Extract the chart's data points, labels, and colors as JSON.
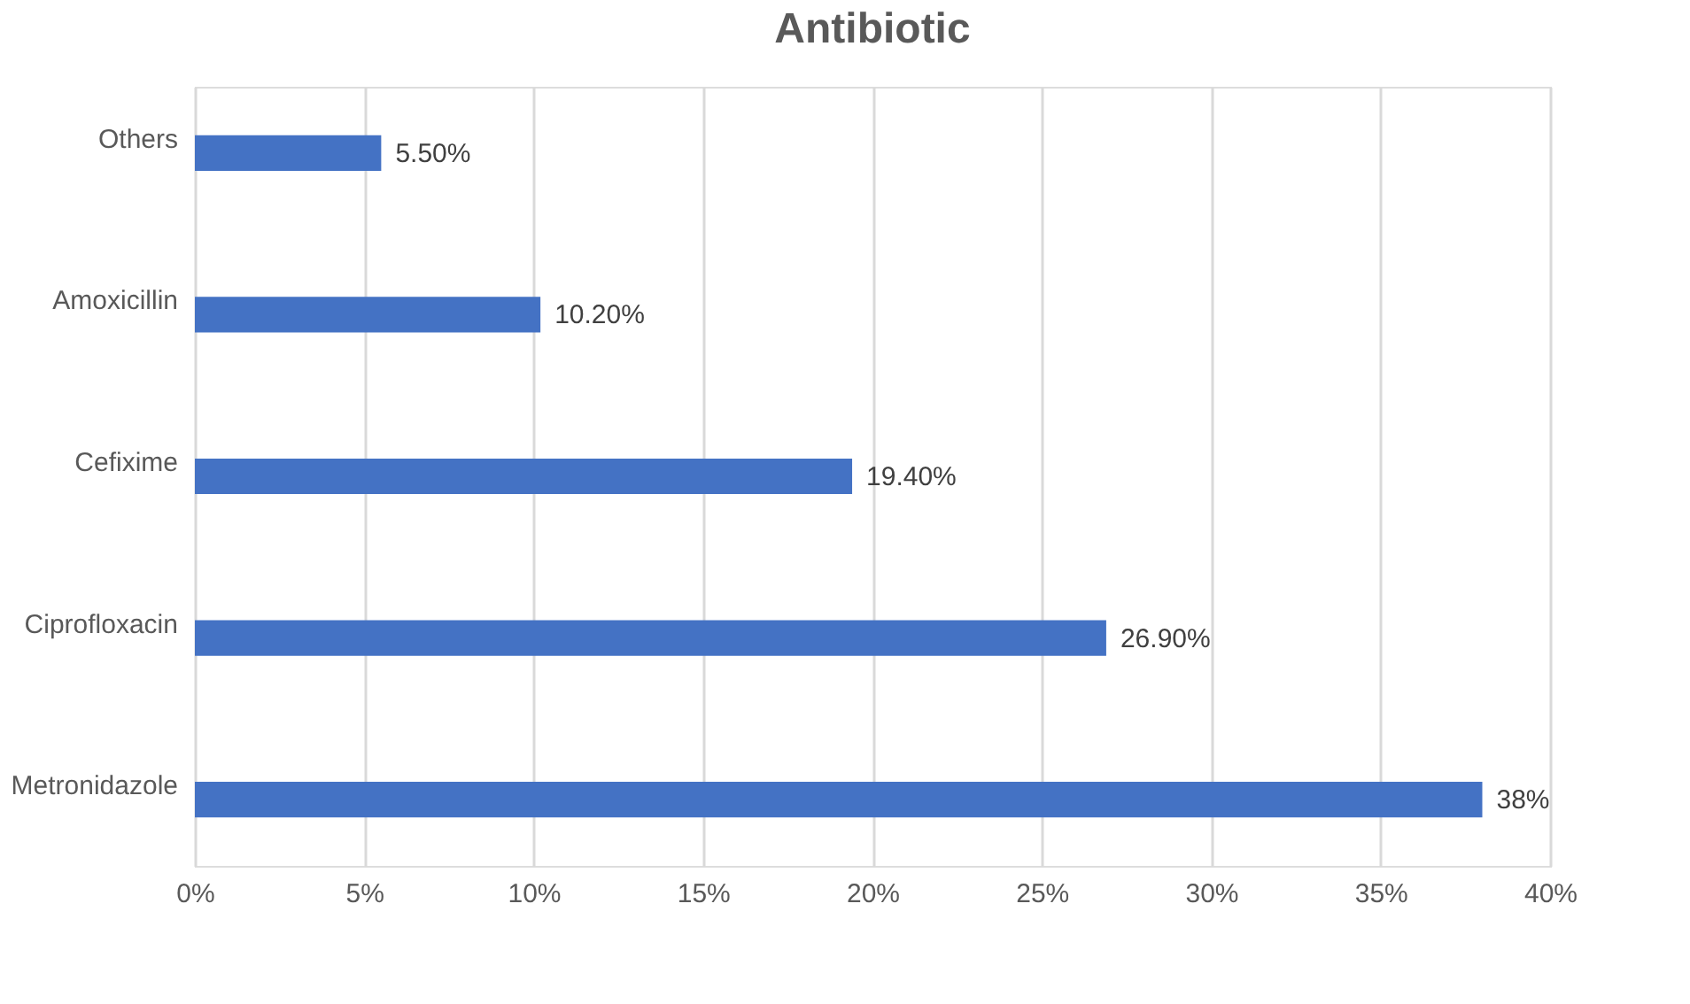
{
  "chart_data": {
    "type": "bar",
    "title": "Antibiotic",
    "orientation": "horizontal",
    "categories": [
      "Others",
      "Amoxicillin",
      "Cefixime",
      "Ciprofloxacin",
      "Metronidazole"
    ],
    "values": [
      5.5,
      10.2,
      19.4,
      26.9,
      38
    ],
    "value_labels": [
      "5.50%",
      "10.20%",
      "19.40%",
      "26.90%",
      "38%"
    ],
    "color": "#4472c4",
    "xlim": [
      0,
      40
    ],
    "xticks": [
      {
        "value": 0,
        "label": "0%"
      },
      {
        "value": 5,
        "label": "5%"
      },
      {
        "value": 10,
        "label": "10%"
      },
      {
        "value": 15,
        "label": "15%"
      },
      {
        "value": 20,
        "label": "20%"
      },
      {
        "value": 25,
        "label": "25%"
      },
      {
        "value": 30,
        "label": "30%"
      },
      {
        "value": 35,
        "label": "35%"
      },
      {
        "value": 40,
        "label": "40%"
      }
    ],
    "grid": "x"
  }
}
